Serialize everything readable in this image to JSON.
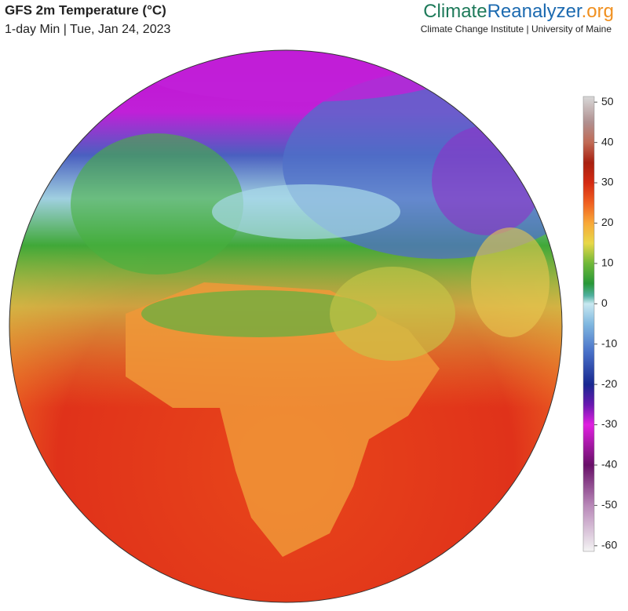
{
  "header": {
    "title": "GFS 2m Temperature (°C)",
    "subtitle": "1-day Min | Tue, Jan 24, 2023",
    "brand": {
      "part1": "Climate",
      "part2": "Reanalyzer",
      "part3": ".org"
    },
    "affiliation": "Climate Change Institute | University of Maine"
  },
  "colorbar": {
    "lim": [
      -61.4,
      51.4
    ],
    "ticks": [
      50,
      40,
      30,
      20,
      10,
      0,
      -10,
      -20,
      -30,
      -40,
      -50,
      -60
    ],
    "colors": [
      {
        "value": 51.4,
        "color": "#d8d8d8"
      },
      {
        "value": 45,
        "color": "#b09090"
      },
      {
        "value": 40,
        "color": "#c06a55"
      },
      {
        "value": 35,
        "color": "#a82010"
      },
      {
        "value": 30,
        "color": "#d42a12"
      },
      {
        "value": 25,
        "color": "#f06020"
      },
      {
        "value": 20,
        "color": "#f8a838"
      },
      {
        "value": 15,
        "color": "#e8d848"
      },
      {
        "value": 10,
        "color": "#70b838"
      },
      {
        "value": 5,
        "color": "#289838"
      },
      {
        "value": 2,
        "color": "#50b0a0"
      },
      {
        "value": 0,
        "color": "#c8e8f0"
      },
      {
        "value": -5,
        "color": "#80b8e0"
      },
      {
        "value": -12,
        "color": "#4870c8"
      },
      {
        "value": -20,
        "color": "#182890"
      },
      {
        "value": -25,
        "color": "#6818b0"
      },
      {
        "value": -30,
        "color": "#e020e0"
      },
      {
        "value": -40,
        "color": "#681068"
      },
      {
        "value": -50,
        "color": "#b888b8"
      },
      {
        "value": -61.4,
        "color": "#f4f4f4"
      }
    ]
  }
}
